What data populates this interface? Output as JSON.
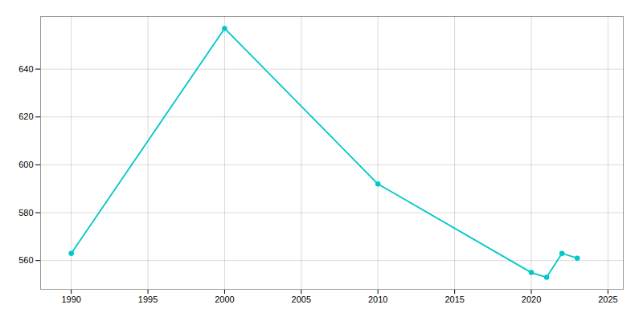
{
  "chart_data": {
    "type": "line",
    "x": [
      1990,
      2000,
      2010,
      2020,
      2021,
      2022,
      2023
    ],
    "values": [
      563,
      657,
      592,
      555,
      553,
      563,
      561
    ],
    "color": "#00c8c8",
    "marker": "circle",
    "xlim": [
      1988,
      2026
    ],
    "ylim": [
      548,
      662
    ],
    "xticks": [
      1990,
      1995,
      2000,
      2005,
      2010,
      2015,
      2020,
      2025
    ],
    "yticks": [
      560,
      580,
      600,
      620,
      640
    ],
    "grid": true
  }
}
